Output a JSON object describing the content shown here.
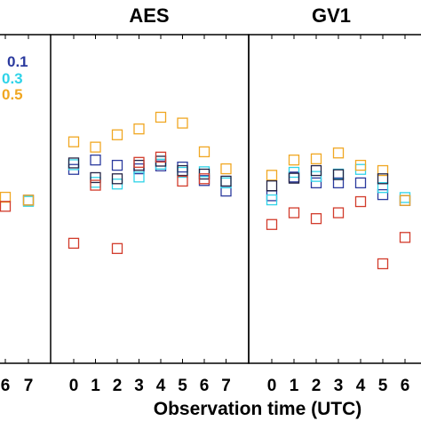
{
  "chart_data": [
    {
      "type": "scatter",
      "title": "",
      "x": [
        6,
        7
      ],
      "series": [
        {
          "name": "0.1",
          "color": "#2b3a9e",
          "values": [
            null,
            0.55
          ]
        },
        {
          "name": "0.3",
          "color": "#2fd3e8",
          "values": [
            null,
            0.35
          ]
        },
        {
          "name": "0.5",
          "color": "#f0a722",
          "values": [
            1.05,
            0.55
          ]
        },
        {
          "name": "",
          "color": "#222244",
          "values": [
            null,
            null
          ]
        },
        {
          "name": "",
          "color": "#d23b2b",
          "values": [
            -0.5,
            null
          ]
        }
      ],
      "legend_labels": [
        "0.1",
        "0.3",
        "0.5"
      ]
    },
    {
      "type": "scatter",
      "title": "AES",
      "x": [
        0,
        1,
        2,
        3,
        4,
        5,
        6,
        7
      ],
      "series": [
        {
          "name": "0.1",
          "color": "#2b3a9e",
          "values": [
            5.8,
            7.4,
            6.5,
            5.9,
            6.4,
            6.2,
            3.9,
            2.1
          ]
        },
        {
          "name": "0.3",
          "color": "#2fd3e8",
          "values": [
            6.6,
            3.6,
            3.3,
            4.5,
            6.7,
            5.3,
            5.4,
            3.5
          ]
        },
        {
          "name": "0.5",
          "color": "#f0a722",
          "values": [
            10.5,
            9.6,
            11.7,
            12.7,
            14.7,
            13.7,
            8.8,
            5.9
          ]
        },
        {
          "name": "",
          "color": "#222244",
          "values": [
            6.9,
            4.4,
            4.2,
            6.5,
            7.2,
            5.6,
            5.0,
            3.8
          ]
        },
        {
          "name": "",
          "color": "#d23b2b",
          "values": [
            -6.8,
            3.1,
            -7.7,
            7.0,
            7.9,
            3.8,
            4.2,
            null
          ]
        }
      ]
    },
    {
      "type": "scatter",
      "title": "GV1",
      "x": [
        0,
        1,
        2,
        3,
        4,
        5,
        6
      ],
      "series": [
        {
          "name": "0.1",
          "color": "#2b3a9e",
          "values": [
            1.3,
            4.5,
            3.5,
            3.5,
            3.5,
            1.5,
            0.5
          ]
        },
        {
          "name": "0.3",
          "color": "#2fd3e8",
          "values": [
            0.6,
            5.3,
            4.6,
            5.0,
            5.8,
            2.7,
            1.0
          ]
        },
        {
          "name": "0.5",
          "color": "#f0a722",
          "values": [
            4.8,
            7.4,
            7.6,
            8.6,
            6.5,
            5.6,
            0.5
          ]
        },
        {
          "name": "",
          "color": "#222244",
          "values": [
            3.0,
            4.3,
            5.6,
            4.9,
            null,
            4.2,
            null
          ]
        },
        {
          "name": "",
          "color": "#d23b2b",
          "values": [
            -3.6,
            -1.6,
            -2.6,
            -1.6,
            0.3,
            -10.3,
            -5.8
          ]
        }
      ]
    }
  ],
  "xlabel": "Observation time (UTC)"
}
